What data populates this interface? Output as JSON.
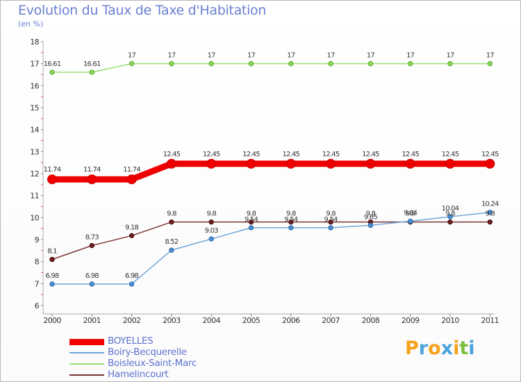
{
  "title": "Evolution du Taux de Taxe d'Habitation",
  "subtitle": "(en %)",
  "logo": {
    "letters": [
      {
        "ch": "P",
        "color": "#f7a21b"
      },
      {
        "ch": "r",
        "color": "#4aa3df"
      },
      {
        "ch": "o",
        "color": "#f7a21b"
      },
      {
        "ch": "x",
        "color": "#4aa3df"
      },
      {
        "ch": "i",
        "color": "#f7a21b"
      },
      {
        "ch": "t",
        "color": "#7dbf3f"
      },
      {
        "ch": "i",
        "color": "#4aa3df"
      }
    ]
  },
  "chart_data": {
    "type": "line",
    "title": "Evolution du Taux de Taxe d'Habitation",
    "ylabel": "(en %)",
    "xlabel": "",
    "ylim": [
      6,
      18
    ],
    "yticks": [
      "6",
      "7",
      "8",
      "9",
      "10",
      "11",
      "12",
      "13",
      "14",
      "15",
      "16",
      "17",
      "18"
    ],
    "categories": [
      "2000",
      "2001",
      "2002",
      "2003",
      "2004",
      "2005",
      "2006",
      "2007",
      "2008",
      "2009",
      "2010",
      "2011"
    ],
    "grid": false,
    "series": [
      {
        "name": "BOYELLES",
        "color": "#ee0000",
        "values": [
          11.74,
          11.74,
          11.74,
          12.45,
          12.45,
          12.45,
          12.45,
          12.45,
          12.45,
          12.45,
          12.45,
          12.45
        ],
        "labels": [
          "11.74",
          "11.74",
          "11.74",
          "12.45",
          "12.45",
          "12.45",
          "12.45",
          "12.45",
          "12.45",
          "12.45",
          "12.45",
          "12.45"
        ]
      },
      {
        "name": "Boiry-Becquerelle",
        "color": "#6ea5d8",
        "values": [
          6.98,
          6.98,
          6.98,
          8.52,
          9.03,
          9.54,
          9.54,
          9.54,
          9.65,
          9.84,
          10.04,
          10.24
        ],
        "labels": [
          "6.98",
          "6.98",
          "6.98",
          "8.52",
          "9.03",
          "9.54",
          "9.54",
          "9.54",
          "9.65",
          "9.84",
          "10.04",
          "10.24"
        ]
      },
      {
        "name": "Boisleux-Saint-Marc",
        "color": "#99dd77",
        "values": [
          16.61,
          16.61,
          17,
          17,
          17,
          17,
          17,
          17,
          17,
          17,
          17,
          17
        ],
        "labels": [
          "16.61",
          "16.61",
          "17",
          "17",
          "17",
          "17",
          "17",
          "17",
          "17",
          "17",
          "17",
          "17"
        ]
      },
      {
        "name": "Hamelincourt",
        "color": "#7a3535",
        "values": [
          8.1,
          8.73,
          9.18,
          9.8,
          9.8,
          9.8,
          9.8,
          9.8,
          9.8,
          9.8,
          9.8,
          9.8
        ],
        "labels": [
          "8.1",
          "8.73",
          "9.18",
          "9.8",
          "9.8",
          "9.8",
          "9.8",
          "9.8",
          "9.8",
          "9.8",
          "9.8",
          "9.8"
        ]
      }
    ],
    "legend_position": "bottom-left"
  }
}
